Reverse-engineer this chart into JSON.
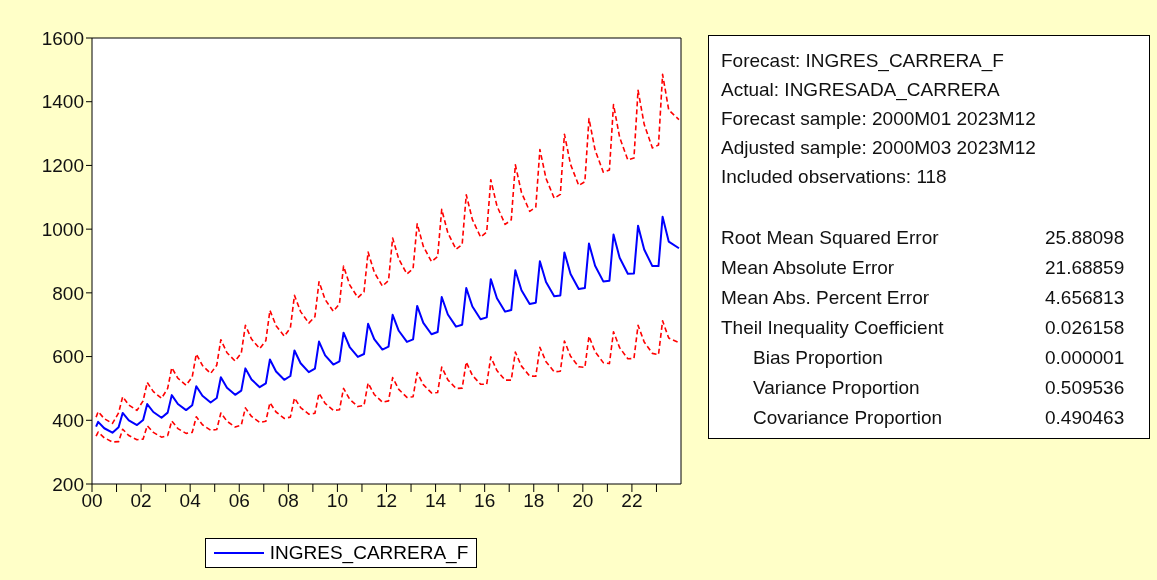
{
  "chart_data": [
    {
      "type": "line",
      "x": [
        "2000-03",
        "2000-04",
        "2000-07",
        "2000-11",
        "2001-02",
        "2001-04",
        "2001-07",
        "2001-11",
        "2002-02",
        "2002-04",
        "2002-07",
        "2002-11",
        "2003-02",
        "2003-04",
        "2003-07",
        "2003-11",
        "2004-02",
        "2004-04",
        "2004-07",
        "2004-11",
        "2005-02",
        "2005-04",
        "2005-07",
        "2005-11",
        "2006-02",
        "2006-04",
        "2006-07",
        "2006-11",
        "2007-02",
        "2007-04",
        "2007-07",
        "2007-11",
        "2008-02",
        "2008-04",
        "2008-07",
        "2008-11",
        "2009-02",
        "2009-04",
        "2009-07",
        "2009-11",
        "2010-02",
        "2010-04",
        "2010-07",
        "2010-11",
        "2011-02",
        "2011-04",
        "2011-07",
        "2011-11",
        "2012-02",
        "2012-04",
        "2012-07",
        "2012-11",
        "2013-02",
        "2013-04",
        "2013-07",
        "2013-11",
        "2014-02",
        "2014-04",
        "2014-07",
        "2014-11",
        "2015-02",
        "2015-04",
        "2015-07",
        "2015-11",
        "2016-02",
        "2016-04",
        "2016-07",
        "2016-11",
        "2017-02",
        "2017-04",
        "2017-07",
        "2017-11",
        "2018-02",
        "2018-04",
        "2018-07",
        "2018-11",
        "2019-02",
        "2019-04",
        "2019-07",
        "2019-11",
        "2020-02",
        "2020-04",
        "2020-07",
        "2020-11",
        "2021-02",
        "2021-04",
        "2021-07",
        "2021-11",
        "2022-02",
        "2022-04",
        "2022-07",
        "2022-11",
        "2023-02",
        "2023-04",
        "2023-07",
        "2023-12"
      ],
      "series": [
        {
          "name": "INGRES_CARRERA_F",
          "color": "#0000ff",
          "values": [
            380,
            395,
            375,
            361,
            378,
            423,
            400,
            385,
            401,
            451,
            426,
            408,
            424,
            479,
            451,
            432,
            447,
            507,
            477,
            456,
            470,
            535,
            502,
            480,
            493,
            563,
            528,
            504,
            516,
            591,
            553,
            527,
            539,
            619,
            579,
            551,
            562,
            647,
            604,
            575,
            585,
            675,
            630,
            599,
            608,
            703,
            655,
            622,
            631,
            731,
            681,
            646,
            654,
            759,
            706,
            670,
            677,
            787,
            732,
            694,
            700,
            815,
            757,
            717,
            723,
            843,
            783,
            741,
            746,
            871,
            808,
            765,
            769,
            899,
            834,
            789,
            792,
            927,
            859,
            812,
            815,
            955,
            885,
            836,
            838,
            983,
            910,
            860,
            861,
            1011,
            936,
            884,
            884,
            1039,
            961,
            940
          ]
        },
        {
          "color": "#ff0000",
          "line_style": "dashed",
          "values": [
            410,
            427,
            405,
            390,
            423,
            474,
            448,
            431,
            461,
            519,
            490,
            469,
            500,
            565,
            532,
            510,
            536,
            608,
            572,
            547,
            573,
            653,
            612,
            586,
            611,
            698,
            655,
            625,
            650,
            745,
            697,
            664,
            690,
            792,
            741,
            705,
            725,
            835,
            779,
            742,
            766,
            884,
            825,
            785,
            803,
            928,
            865,
            821,
            839,
            972,
            906,
            859,
            876,
            1017,
            946,
            898,
            914,
            1062,
            988,
            937,
            952,
            1108,
            1030,
            975,
            991,
            1155,
            1073,
            1015,
            1029,
            1202,
            1115,
            1056,
            1069,
            1250,
            1159,
            1097,
            1109,
            1298,
            1203,
            1137,
            1149,
            1347,
            1248,
            1179,
            1186,
            1391,
            1288,
            1217,
            1223,
            1436,
            1329,
            1255,
            1264,
            1486,
            1374,
            1344
          ]
        },
        {
          "color": "#ff0000",
          "line_style": "dashed",
          "values": [
            350,
            363,
            345,
            332,
            333,
            372,
            352,
            339,
            341,
            383,
            362,
            347,
            352,
            398,
            374,
            359,
            362,
            411,
            386,
            369,
            371,
            423,
            397,
            379,
            385,
            439,
            412,
            393,
            397,
            455,
            426,
            406,
            410,
            470,
            440,
            419,
            422,
            485,
            453,
            431,
            433,
            500,
            466,
            443,
            447,
            517,
            481,
            457,
            461,
            534,
            497,
            472,
            474,
            550,
            512,
            486,
            487,
            567,
            527,
            500,
            501,
            583,
            541,
            513,
            513,
            599,
            556,
            526,
            526,
            614,
            570,
            539,
            538,
            629,
            584,
            552,
            554,
            649,
            601,
            568,
            566,
            664,
            615,
            581,
            578,
            678,
            628,
            593,
            594,
            698,
            646,
            610,
            606,
            712,
            658,
            644
          ]
        }
      ],
      "xlim": [
        "2000-01",
        "2024-01"
      ],
      "xticks": [
        {
          "value": "2000-01",
          "label": "00"
        },
        {
          "value": "2001-01",
          "label": null
        },
        {
          "value": "2002-01",
          "label": "02"
        },
        {
          "value": "2003-01",
          "label": null
        },
        {
          "value": "2004-01",
          "label": "04"
        },
        {
          "value": "2005-01",
          "label": null
        },
        {
          "value": "2006-01",
          "label": "06"
        },
        {
          "value": "2007-01",
          "label": null
        },
        {
          "value": "2008-01",
          "label": "08"
        },
        {
          "value": "2009-01",
          "label": null
        },
        {
          "value": "2010-01",
          "label": "10"
        },
        {
          "value": "2011-01",
          "label": null
        },
        {
          "value": "2012-01",
          "label": "12"
        },
        {
          "value": "2013-01",
          "label": null
        },
        {
          "value": "2014-01",
          "label": "14"
        },
        {
          "value": "2015-01",
          "label": null
        },
        {
          "value": "2016-01",
          "label": "16"
        },
        {
          "value": "2017-01",
          "label": null
        },
        {
          "value": "2018-01",
          "label": "18"
        },
        {
          "value": "2019-01",
          "label": null
        },
        {
          "value": "2020-01",
          "label": "20"
        },
        {
          "value": "2021-01",
          "label": null
        },
        {
          "value": "2022-01",
          "label": "22"
        },
        {
          "value": "2023-01",
          "label": null
        }
      ],
      "ylim": [
        200,
        1600
      ],
      "yticks": [
        200,
        400,
        600,
        800,
        1000,
        1200,
        1400,
        1600
      ],
      "legend": "bottom",
      "marker": "none",
      "line_style": "solid"
    },
    {
      "type": "other",
      "annotations": [
        "Forecast: INGRES_CARRERA_F",
        "Actual: INGRESADA_CARRERA",
        "Forecast sample: 2000M01 2023M12",
        "Adjusted sample: 2000M03 2023M12",
        "Included observations: 118",
        "Root Mean Squared Error",
        "25.88098",
        "Mean Absolute Error",
        "21.68859",
        "Mean Abs. Percent Error",
        "4.656813",
        "Theil Inequality Coefficient",
        "0.026158",
        "Bias Proportion",
        "0.000001",
        "Variance Proportion",
        "0.509536",
        "Covariance Proportion",
        "0.490463"
      ]
    }
  ]
}
